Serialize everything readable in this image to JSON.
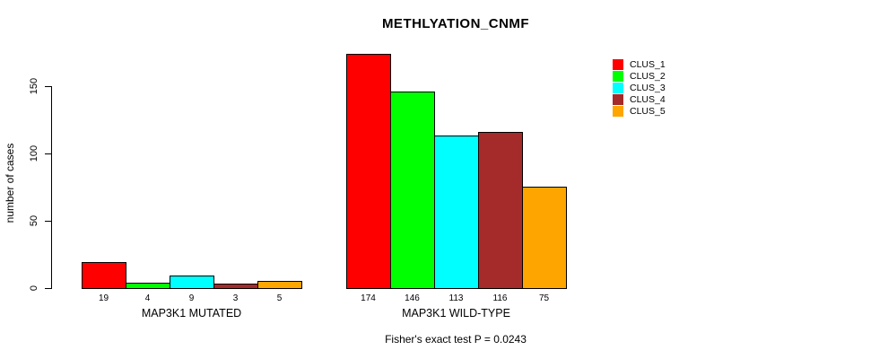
{
  "chart_data": {
    "type": "bar",
    "title": "METHLYATION_CNMF",
    "ylabel": "number of cases",
    "subtitle": "Fisher's exact test P = 0.0243",
    "yticks": [
      0,
      50,
      100,
      150
    ],
    "ylim": [
      0,
      150
    ],
    "grid": false,
    "legend_position": "top-right",
    "background_color": "#ffffff",
    "axis_color": "#000000",
    "groups": [
      {
        "label": "MAP3K1 MUTATED",
        "values": [
          19,
          4,
          9,
          3,
          5
        ]
      },
      {
        "label": "MAP3K1 WILD-TYPE",
        "values": [
          174,
          146,
          113,
          116,
          75
        ]
      }
    ],
    "series": [
      {
        "name": "CLUS_1",
        "color": "#FF0000"
      },
      {
        "name": "CLUS_2",
        "color": "#00FF00"
      },
      {
        "name": "CLUS_3",
        "color": "#00FFFF"
      },
      {
        "name": "CLUS_4",
        "color": "#A52A2A"
      },
      {
        "name": "CLUS_5",
        "color": "#FFA500"
      }
    ]
  }
}
